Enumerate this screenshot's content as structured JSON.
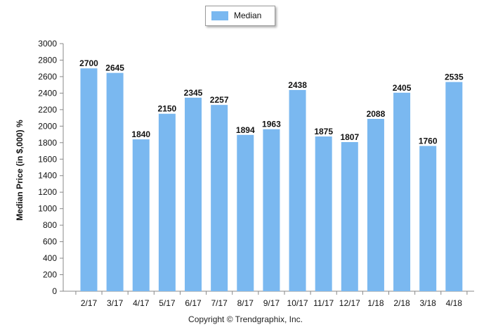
{
  "chart_data": {
    "type": "bar",
    "categories": [
      "2/17",
      "3/17",
      "4/17",
      "5/17",
      "6/17",
      "7/17",
      "8/17",
      "9/17",
      "10/17",
      "11/17",
      "12/17",
      "1/18",
      "2/18",
      "3/18",
      "4/18"
    ],
    "series": [
      {
        "name": "Median",
        "values": [
          2700,
          2645,
          1840,
          2150,
          2345,
          2257,
          1894,
          1963,
          2438,
          1875,
          1807,
          2088,
          2405,
          1760,
          2535
        ]
      }
    ],
    "title": "",
    "xlabel": "",
    "ylabel": "Median Price (in $,000) %",
    "ylim": [
      0,
      3000
    ],
    "yticks": [
      0,
      200,
      400,
      600,
      800,
      1000,
      1200,
      1400,
      1600,
      1800,
      2000,
      2200,
      2400,
      2600,
      2800,
      3000
    ],
    "grid": false,
    "legend": "top-center",
    "bar_color": "#7ab8f0",
    "footer": "Copyright © Trendgraphix, Inc."
  }
}
